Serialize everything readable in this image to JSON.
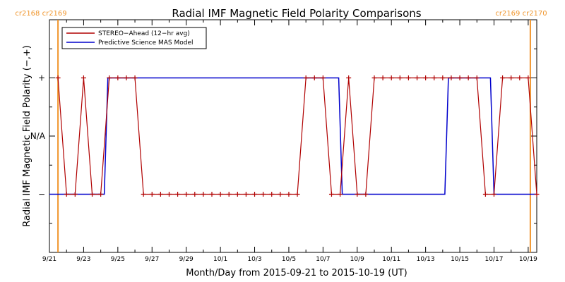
{
  "chart_data": {
    "type": "line",
    "title": "Radial IMF Magnetic Field Polarity Comparisons",
    "xlabel": "Month/Day from 2015-09-21 to 2015-10-19 (UT)",
    "ylabel": "Radial IMF Magnetic Field Polarity (−,+)",
    "y_categories": [
      "−",
      "N/A",
      "+"
    ],
    "y_values_encoding": {
      "-": -1,
      "N/A": 0,
      "+": 1
    },
    "ylim": [
      -2,
      2
    ],
    "xlim": [
      "2015-09-21T00",
      "2015-10-19T12"
    ],
    "x_ticks": [
      "9/21",
      "9/23",
      "9/25",
      "9/27",
      "9/29",
      "10/1",
      "10/3",
      "10/5",
      "10/7",
      "10/9",
      "10/11",
      "10/13",
      "10/15",
      "10/17",
      "10/19"
    ],
    "rotation_markers": [
      {
        "label": "cr2168 cr2169",
        "x": "2015-09-21T12",
        "side": "left"
      },
      {
        "label": "cr2169 cr2170",
        "x": "2015-10-19T03",
        "side": "right"
      }
    ],
    "legend": {
      "placement": "top-left",
      "entries": [
        "STEREO−Ahead (12−hr avg)",
        "Predictive Science MAS Model"
      ]
    },
    "colors": {
      "stereo": "#b00000",
      "model": "#0000cc",
      "rotation": "#f0962d",
      "axes": "#000000"
    },
    "series": [
      {
        "name": "STEREO−Ahead (12−hr avg)",
        "color": "#b00000",
        "marker": "plus",
        "x": [
          "2015-09-21T12",
          "2015-09-22T00",
          "2015-09-22T12",
          "2015-09-23T00",
          "2015-09-23T12",
          "2015-09-24T00",
          "2015-09-24T12",
          "2015-09-25T00",
          "2015-09-25T12",
          "2015-09-26T00",
          "2015-09-26T12",
          "2015-09-27T00",
          "2015-09-27T12",
          "2015-09-28T00",
          "2015-09-28T12",
          "2015-09-29T00",
          "2015-09-29T12",
          "2015-09-30T00",
          "2015-09-30T12",
          "2015-10-01T00",
          "2015-10-01T12",
          "2015-10-02T00",
          "2015-10-02T12",
          "2015-10-03T00",
          "2015-10-03T12",
          "2015-10-04T00",
          "2015-10-04T12",
          "2015-10-05T00",
          "2015-10-05T12",
          "2015-10-06T00",
          "2015-10-06T12",
          "2015-10-07T00",
          "2015-10-07T12",
          "2015-10-08T00",
          "2015-10-08T12",
          "2015-10-09T00",
          "2015-10-09T12",
          "2015-10-10T00",
          "2015-10-10T12",
          "2015-10-11T00",
          "2015-10-11T12",
          "2015-10-12T00",
          "2015-10-12T12",
          "2015-10-13T00",
          "2015-10-13T12",
          "2015-10-14T00",
          "2015-10-14T12",
          "2015-10-15T00",
          "2015-10-15T12",
          "2015-10-16T00",
          "2015-10-16T12",
          "2015-10-17T00",
          "2015-10-17T12",
          "2015-10-18T00",
          "2015-10-18T12",
          "2015-10-19T00",
          "2015-10-19T12"
        ],
        "y": [
          1,
          -1,
          -1,
          1,
          -1,
          -1,
          1,
          1,
          1,
          1,
          -1,
          -1,
          -1,
          -1,
          -1,
          -1,
          -1,
          -1,
          -1,
          -1,
          -1,
          -1,
          -1,
          -1,
          -1,
          -1,
          -1,
          -1,
          -1,
          1,
          1,
          1,
          -1,
          -1,
          1,
          -1,
          -1,
          1,
          1,
          1,
          1,
          1,
          1,
          1,
          1,
          1,
          1,
          1,
          1,
          1,
          -1,
          -1,
          1,
          1,
          1,
          1,
          -1
        ]
      },
      {
        "name": "Predictive Science MAS Model",
        "color": "#0000cc",
        "x": [
          "2015-09-21T00",
          "2015-09-24T05",
          "2015-09-24T10",
          "2015-10-07T22",
          "2015-10-08T03",
          "2015-10-14T03",
          "2015-10-14T08",
          "2015-10-16T19",
          "2015-10-17T00",
          "2015-10-19T12"
        ],
        "y": [
          -1,
          -1,
          1,
          1,
          -1,
          -1,
          1,
          1,
          -1,
          -1
        ]
      }
    ]
  }
}
